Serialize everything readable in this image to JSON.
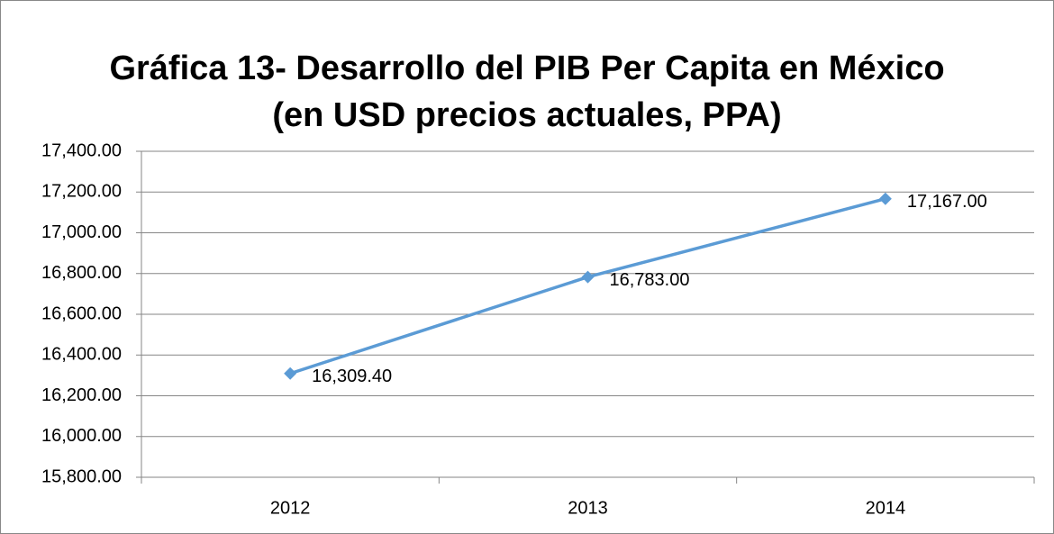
{
  "chart_data": {
    "type": "line",
    "title": [
      "Gráfica 13- Desarrollo del PIB Per Capita en México",
      "(en USD precios actuales, PPA)"
    ],
    "categories": [
      "2012",
      "2013",
      "2014"
    ],
    "series": [
      {
        "name": "PIB Per Capita",
        "color": "#5b9bd5",
        "values": [
          16309.4,
          16783,
          17167
        ],
        "value_labels": [
          "16,309.40",
          "16,783.00",
          "17,167.00"
        ]
      }
    ],
    "ylim": [
      15800,
      17400
    ],
    "yticks": [
      {
        "value": 15800,
        "label": "15,800.00"
      },
      {
        "value": 16000,
        "label": "16,000.00"
      },
      {
        "value": 16200,
        "label": "16,200.00"
      },
      {
        "value": 16400,
        "label": "16,400.00"
      },
      {
        "value": 16600,
        "label": "16,600.00"
      },
      {
        "value": 16800,
        "label": "16,800.00"
      },
      {
        "value": 17000,
        "label": "17,000.00"
      },
      {
        "value": 17200,
        "label": "17,200.00"
      },
      {
        "value": 17400,
        "label": "17,400.00"
      }
    ],
    "grid": true,
    "legend": false
  }
}
